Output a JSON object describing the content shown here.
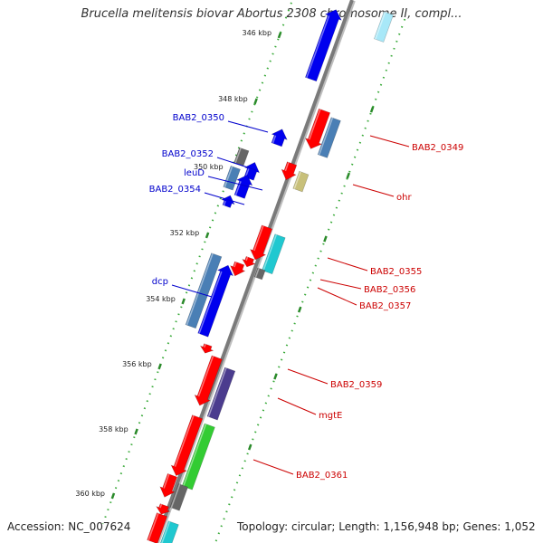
{
  "title": "Brucella melitensis biovar Abortus 2308 chromosome II, compl...",
  "accession": "Accession: NC_007624",
  "summary": "Topology: circular; Length: 1,156,948 bp; Genes: 1,052",
  "colors": {
    "backbone": "#7a7a7a",
    "forward_label": "#0000cc",
    "reverse_label": "#cc0000",
    "tick_major": "#2a8a2a",
    "tick_dots": "#3aaa3a",
    "red": "#ff0000",
    "blue": "#0000ee",
    "steel": "#4a7fb5",
    "gray": "#666666",
    "khaki": "#c8c07a",
    "cyan": "#20c8d0",
    "purple": "#4b3c8e",
    "green": "#33cc33",
    "lightcyan": "#a8e8f8"
  },
  "scale_ticks": [
    "346 kbp",
    "348 kbp",
    "350 kbp",
    "352 kbp",
    "354 kbp",
    "356 kbp",
    "358 kbp",
    "360 kbp"
  ],
  "gene_labels": {
    "forward": [
      "BAB2_0350",
      "BAB2_0352",
      "leuD",
      "BAB2_0354",
      "dcp"
    ],
    "reverse": [
      "BAB2_0349",
      "ohr",
      "BAB2_0355",
      "BAB2_0356",
      "BAB2_0357",
      "BAB2_0359",
      "mgtE",
      "BAB2_0361"
    ]
  }
}
